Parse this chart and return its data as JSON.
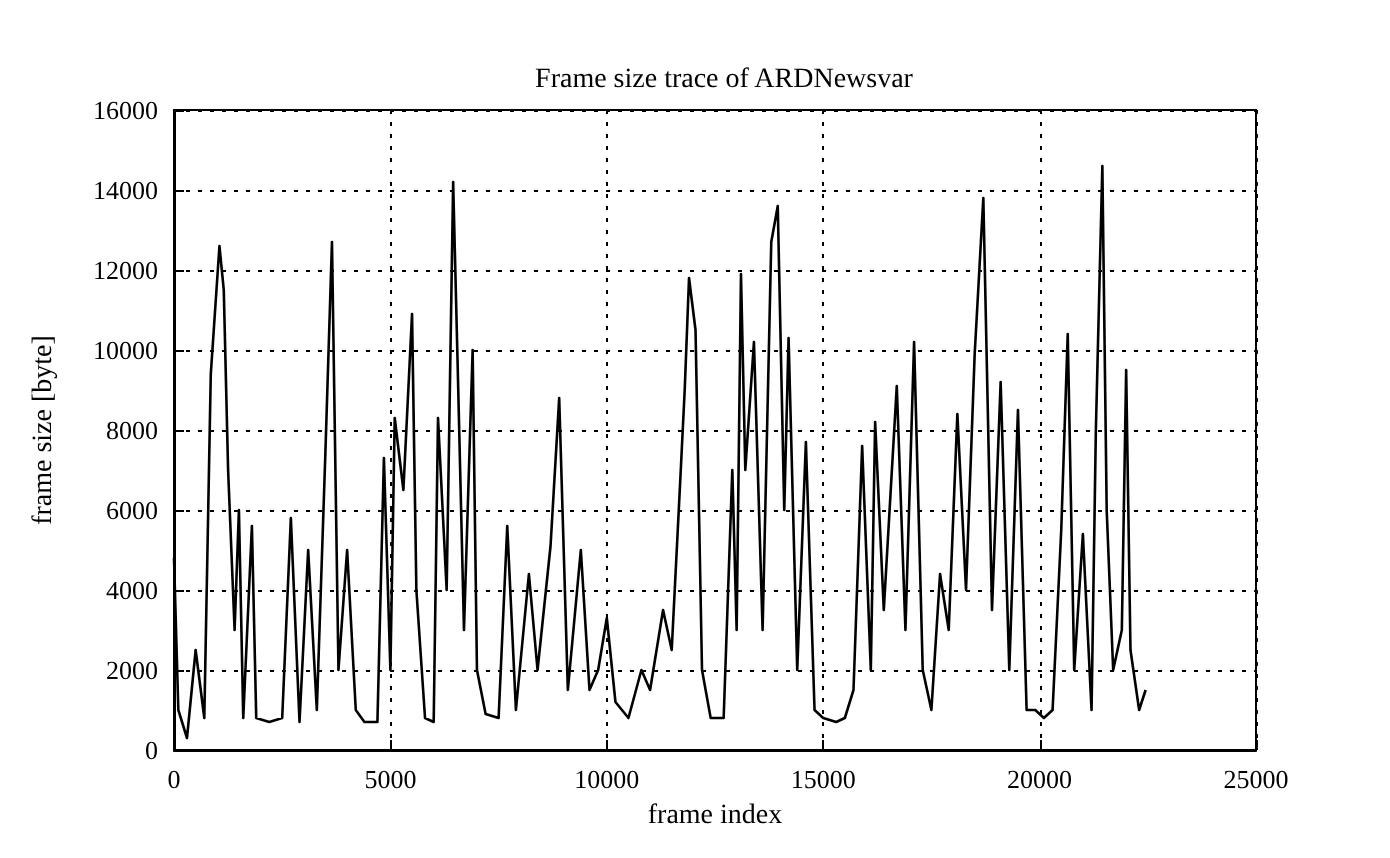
{
  "chart_data": {
    "type": "line",
    "title": "Frame size trace of ARDNewsvar",
    "xlabel": "frame index",
    "ylabel": "frame size [byte]",
    "xlim": [
      0,
      25000
    ],
    "xticks": [
      0,
      5000,
      10000,
      15000,
      20000,
      25000
    ],
    "ylim": [
      0,
      16000
    ],
    "yticks": [
      0,
      2000,
      4000,
      6000,
      8000,
      10000,
      12000,
      14000,
      16000
    ],
    "grid": true,
    "marker": "none",
    "line_style": "solid",
    "series": [
      {
        "color": "#000000",
        "x": [
          0,
          100,
          300,
          500,
          700,
          850,
          950,
          1050,
          1150,
          1250,
          1400,
          1500,
          1600,
          1800,
          1900,
          2200,
          2500,
          2700,
          2900,
          3100,
          3300,
          3500,
          3650,
          3800,
          4000,
          4200,
          4400,
          4700,
          4850,
          5000,
          5100,
          5300,
          5500,
          5600,
          5800,
          6000,
          6100,
          6300,
          6450,
          6550,
          6700,
          6900,
          7000,
          7200,
          7500,
          7700,
          7900,
          8200,
          8400,
          8700,
          8900,
          9100,
          9400,
          9600,
          9800,
          10000,
          10200,
          10500,
          10800,
          11000,
          11300,
          11500,
          11700,
          11800,
          11900,
          12050,
          12200,
          12400,
          12700,
          12900,
          13000,
          13100,
          13200,
          13400,
          13600,
          13800,
          13950,
          14100,
          14200,
          14400,
          14600,
          14800,
          15000,
          15300,
          15500,
          15700,
          15900,
          16100,
          16200,
          16400,
          16700,
          16900,
          17100,
          17300,
          17500,
          17700,
          17900,
          18100,
          18300,
          18500,
          18700,
          18900,
          19100,
          19300,
          19500,
          19700,
          19900,
          20100,
          20300,
          20500,
          20650,
          20800,
          21000,
          21200,
          21300,
          21450,
          21550,
          21700,
          21900,
          22000,
          22100,
          22300,
          22450
        ],
        "values": [
          4800,
          1000,
          300,
          2500,
          800,
          9400,
          11000,
          12600,
          11500,
          7000,
          3000,
          6000,
          800,
          5600,
          800,
          700,
          800,
          5800,
          700,
          5000,
          1000,
          7500,
          12700,
          2000,
          5000,
          1000,
          700,
          700,
          7300,
          2000,
          8300,
          6500,
          10900,
          4000,
          800,
          700,
          8300,
          4000,
          14200,
          9800,
          3000,
          10000,
          2000,
          900,
          800,
          5600,
          1000,
          4400,
          2000,
          5100,
          8800,
          1500,
          5000,
          1500,
          2000,
          3300,
          1200,
          800,
          2000,
          1500,
          3500,
          2500,
          6800,
          9000,
          11800,
          10500,
          2000,
          800,
          800,
          7000,
          3000,
          11900,
          7000,
          10200,
          3000,
          12700,
          13600,
          6000,
          10300,
          2000,
          7700,
          1000,
          800,
          700,
          800,
          1500,
          7600,
          2000,
          8200,
          3500,
          9100,
          3000,
          10200,
          2000,
          1000,
          4400,
          3000,
          8400,
          4000,
          9900,
          13800,
          3500,
          9200,
          2000,
          8500,
          1000,
          1000,
          800,
          1000,
          5500,
          10400,
          2000,
          5400,
          1000,
          8000,
          14600,
          6000,
          2000,
          3000,
          9500,
          2500,
          1000,
          1500
        ]
      }
    ]
  }
}
